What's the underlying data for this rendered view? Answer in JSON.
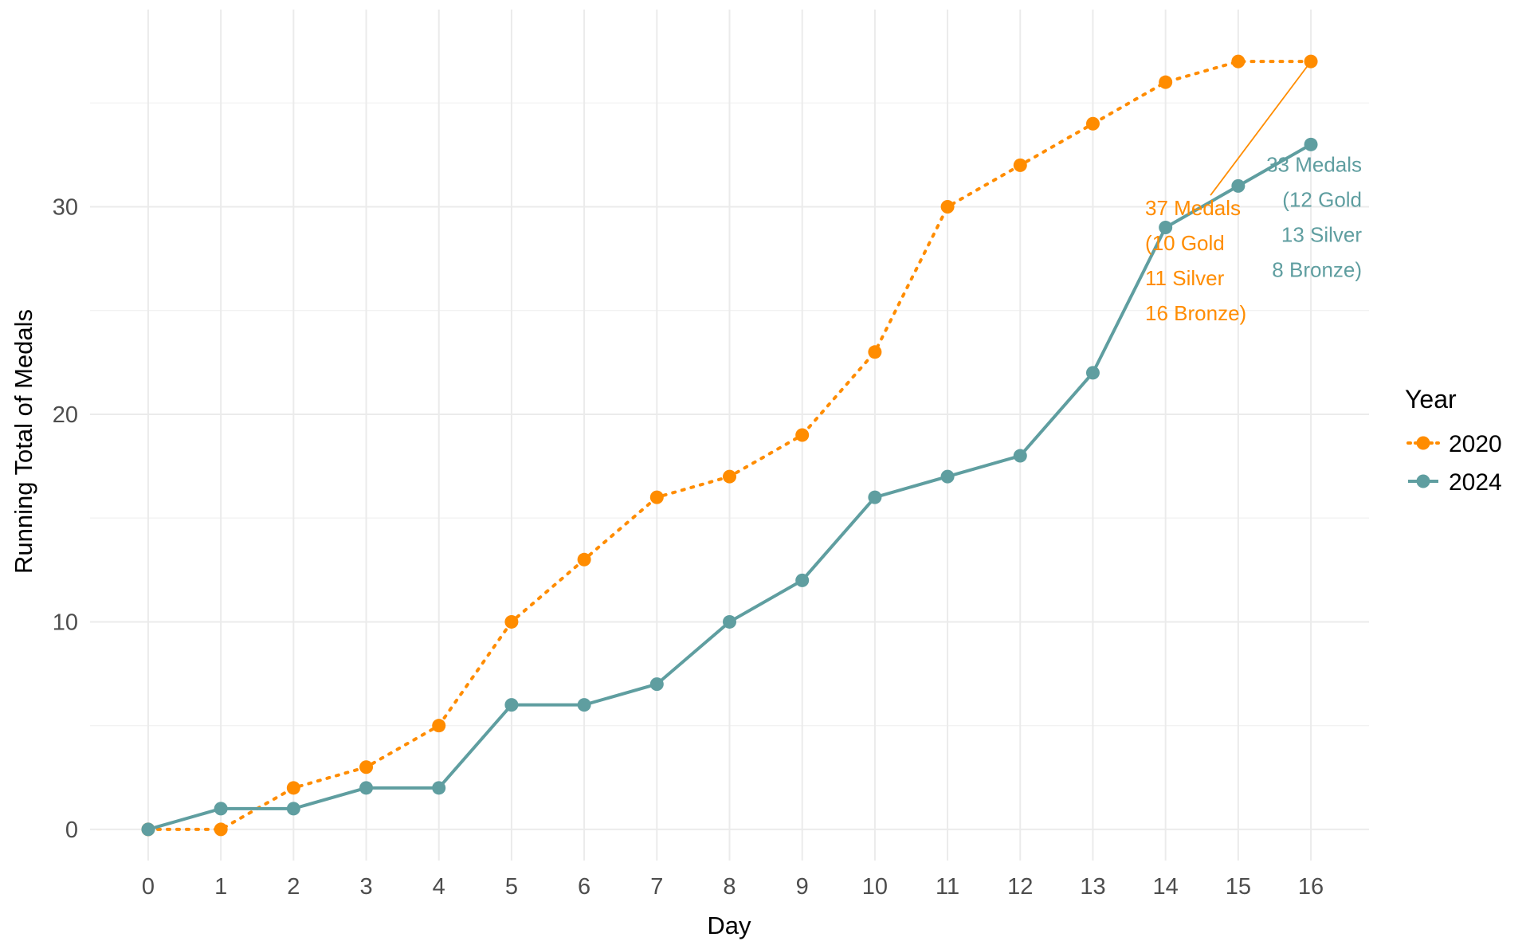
{
  "chart_data": {
    "type": "line",
    "title": "",
    "xlabel": "Day",
    "ylabel": "Running Total of Medals",
    "x": [
      0,
      1,
      2,
      3,
      4,
      5,
      6,
      7,
      8,
      9,
      10,
      11,
      12,
      13,
      14,
      15,
      16
    ],
    "xticks": [
      "0",
      "1",
      "2",
      "3",
      "4",
      "5",
      "6",
      "7",
      "8",
      "9",
      "10",
      "11",
      "12",
      "13",
      "14",
      "15",
      "16"
    ],
    "yticks": [
      "0",
      "10",
      "20",
      "30"
    ],
    "xlim": [
      -0.8,
      16.8
    ],
    "ylim": [
      -1.5,
      39.5
    ],
    "grid": true,
    "legend": {
      "title": "Year",
      "position": "right"
    },
    "series": [
      {
        "name": "2020",
        "color": "#FF8C00",
        "linestyle": "dotted",
        "values": [
          0,
          0,
          2,
          3,
          5,
          10,
          13,
          16,
          17,
          19,
          23,
          30,
          32,
          34,
          36,
          37,
          37
        ]
      },
      {
        "name": "2024",
        "color": "#5F9EA0",
        "linestyle": "solid",
        "values": [
          0,
          1,
          1,
          2,
          2,
          6,
          6,
          7,
          10,
          12,
          16,
          17,
          18,
          22,
          29,
          31,
          33
        ]
      }
    ],
    "annotations": [
      {
        "series": "2020",
        "color": "#FF8C00",
        "target": [
          16,
          37
        ],
        "lines": [
          "37 Medals",
          "(10 Gold",
          "11 Silver",
          "16 Bronze)"
        ]
      },
      {
        "series": "2024",
        "color": "#5F9EA0",
        "target": [
          16,
          33
        ],
        "lines": [
          "33 Medals",
          "(12 Gold",
          "13 Silver",
          "8 Bronze)"
        ]
      }
    ]
  }
}
